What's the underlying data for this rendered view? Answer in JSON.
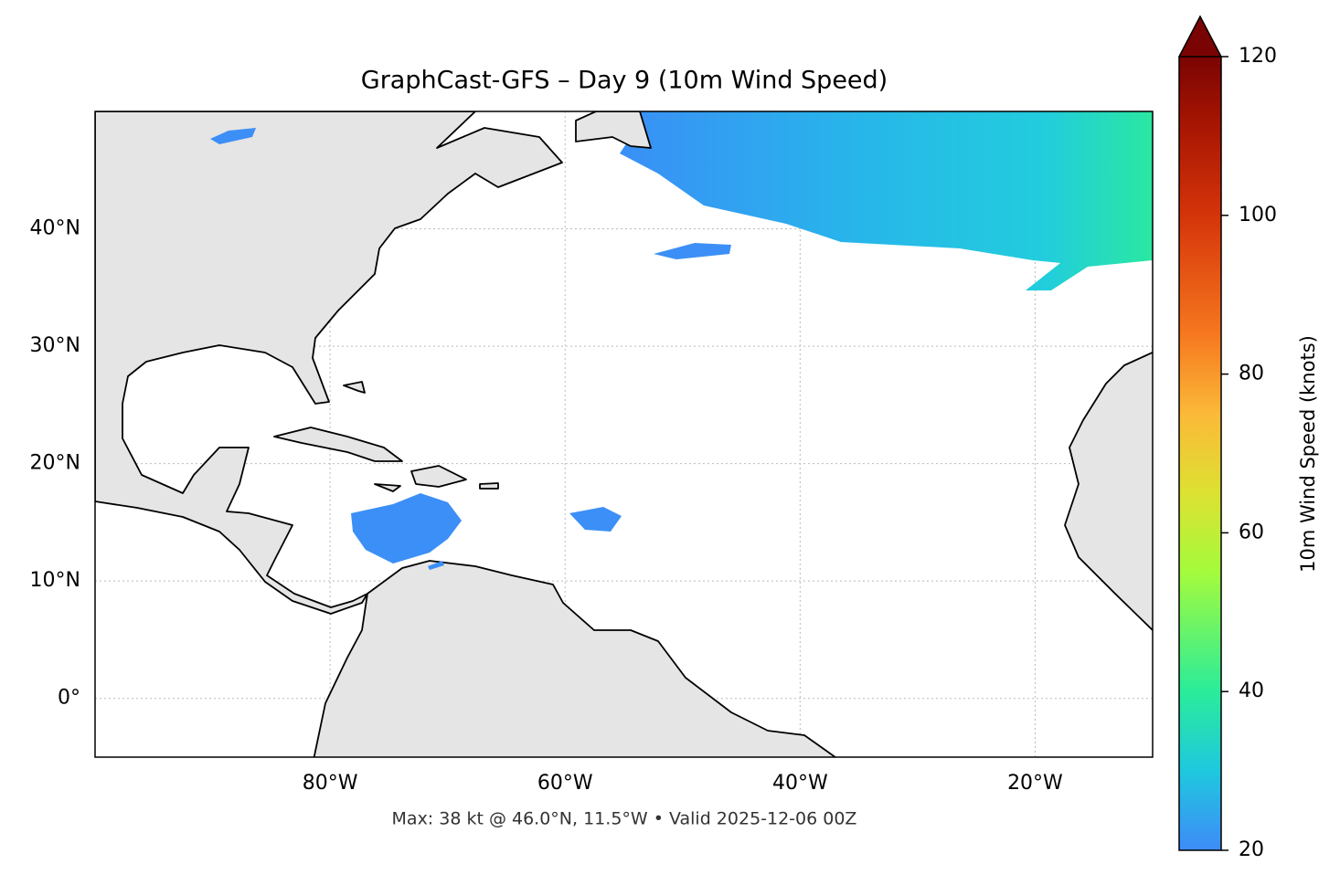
{
  "map": {
    "title": "GraphCast-GFS – Day 9 (10m Wind Speed)",
    "lon_lim": [
      -100,
      -10
    ],
    "lat_lim": [
      -5,
      50
    ],
    "lon_ticks": [
      {
        "value": -80,
        "label": "80°W"
      },
      {
        "value": -60,
        "label": "60°W"
      },
      {
        "value": -40,
        "label": "40°W"
      },
      {
        "value": -20,
        "label": "20°W"
      }
    ],
    "lat_ticks": [
      {
        "value": 0,
        "label": "0°"
      },
      {
        "value": 10,
        "label": "10°N"
      },
      {
        "value": 20,
        "label": "20°N"
      },
      {
        "value": 30,
        "label": "30°N"
      },
      {
        "value": 40,
        "label": "40°N"
      }
    ],
    "footer": "Max: 38 kt @ 46.0°N, 11.5°W • Valid 2025-12-06 00Z",
    "colorbar": {
      "label": "10m Wind Speed (knots)",
      "lim": [
        20,
        120
      ],
      "ticks": [
        20,
        40,
        60,
        80,
        100,
        120
      ]
    }
  }
}
